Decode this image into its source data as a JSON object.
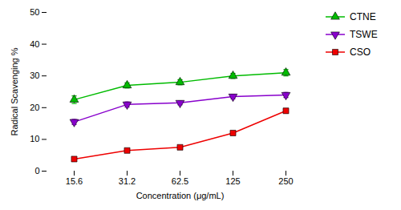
{
  "chart_data": {
    "type": "line",
    "xlabel": "Concentration (μg/mL)",
    "ylabel": "Radical Scavenging %",
    "categories": [
      "15.6",
      "31.2",
      "62.5",
      "125",
      "250"
    ],
    "series": [
      {
        "name": "CTNE",
        "color": "#00bb00",
        "marker": "triangle-up",
        "values": [
          22.5,
          27.0,
          28.0,
          30.0,
          31.0
        ],
        "errors": [
          1.2,
          0.8,
          0.8,
          0.8,
          1.0
        ]
      },
      {
        "name": "TSWE",
        "color": "#8800cc",
        "marker": "triangle-down",
        "values": [
          15.5,
          21.0,
          21.5,
          23.5,
          24.0
        ],
        "errors": [
          0.8,
          0.8,
          0.6,
          0.7,
          0.8
        ]
      },
      {
        "name": "CSO",
        "color": "#ee0000",
        "marker": "square",
        "values": [
          3.8,
          6.5,
          7.5,
          12.0,
          19.0
        ],
        "errors": [
          0.3,
          0.5,
          0.5,
          0.6,
          0.7
        ]
      }
    ],
    "ylim": [
      0,
      50
    ],
    "yticks": [
      0,
      10,
      20,
      30,
      40,
      50
    ],
    "grid": false,
    "legend": "right"
  }
}
